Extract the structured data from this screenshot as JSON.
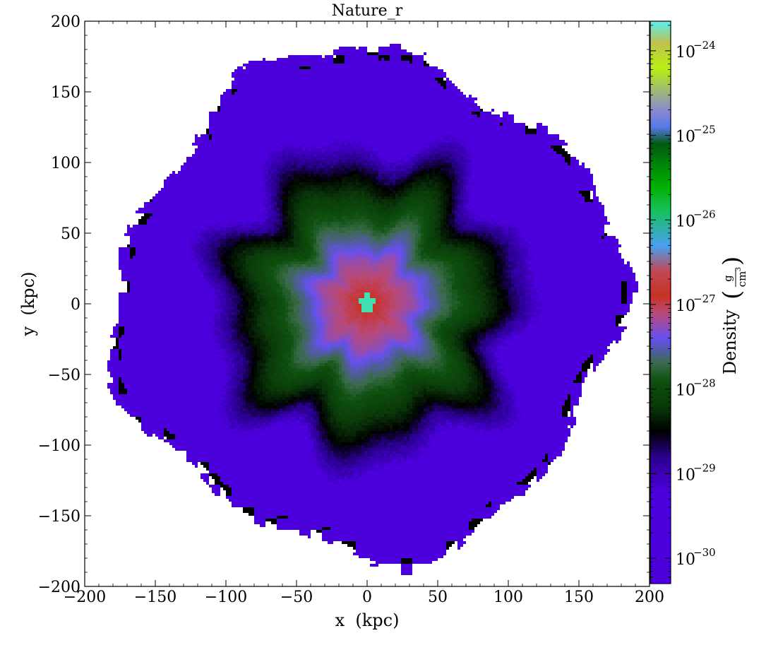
{
  "chart_data": {
    "type": "heatmap",
    "title": "Nature_r",
    "xlabel": "x  (kpc)",
    "ylabel": "y  (kpc)",
    "xlim": [
      -200,
      200
    ],
    "ylim": [
      -200,
      200
    ],
    "xticks": [
      -200,
      -150,
      -100,
      -50,
      0,
      50,
      100,
      150,
      200
    ],
    "yticks": [
      -200,
      -150,
      -100,
      -50,
      0,
      50,
      100,
      150,
      200
    ],
    "xtick_labels": [
      "−200",
      "−150",
      "−100",
      "−50",
      "0",
      "50",
      "100",
      "150",
      "200"
    ],
    "ytick_labels": [
      "−200",
      "−150",
      "−100",
      "−50",
      "0",
      "50",
      "100",
      "150",
      "200"
    ],
    "colorbar": {
      "label": "Density",
      "unit_numerator": "g",
      "unit_denominator": "cm",
      "unit_exponent": "3",
      "scale": "log",
      "range_log10": [
        -30.3,
        -23.65
      ],
      "tick_exponents": [
        -30,
        -29,
        -28,
        -27,
        -26,
        -25,
        -24
      ],
      "tick_base": "10",
      "tick_exponent_labels": [
        "−30",
        "−29",
        "−28",
        "−27",
        "−26",
        "−25",
        "−24"
      ],
      "colormap": "Nature_r",
      "color_stops": [
        {
          "log10": -30.3,
          "color": "#4b00dc"
        },
        {
          "log10": -29.2,
          "color": "#4b00dc"
        },
        {
          "log10": -28.8,
          "color": "#2a0090"
        },
        {
          "log10": -28.5,
          "color": "#000000"
        },
        {
          "log10": -28.2,
          "color": "#0a3a0a"
        },
        {
          "log10": -27.9,
          "color": "#0e500e"
        },
        {
          "log10": -27.7,
          "color": "#3a6a4a"
        },
        {
          "log10": -27.4,
          "color": "#6650f0"
        },
        {
          "log10": -27.1,
          "color": "#b84a7a"
        },
        {
          "log10": -26.9,
          "color": "#c83222"
        },
        {
          "log10": -26.6,
          "color": "#c04858"
        },
        {
          "log10": -26.3,
          "color": "#4aa0f0"
        },
        {
          "log10": -25.9,
          "color": "#18c060"
        },
        {
          "log10": -25.6,
          "color": "#00b000"
        },
        {
          "log10": -25.1,
          "color": "#005a10"
        },
        {
          "log10": -24.9,
          "color": "#5a78e8"
        },
        {
          "log10": -24.7,
          "color": "#8a8ad0"
        },
        {
          "log10": -24.2,
          "color": "#b8f010"
        },
        {
          "log10": -23.9,
          "color": "#c0c050"
        },
        {
          "log10": -23.65,
          "color": "#5af0f0"
        }
      ]
    },
    "structure": {
      "disk_edge_kpc": 180,
      "outer_floor_log10": -29.4,
      "black_ring_radius_kpc": 90,
      "inner_red_radius_kpc": 30,
      "core_radius_kpc": 6,
      "core_color": "#40e0b0",
      "edge_pixel_color": "#000000"
    }
  }
}
